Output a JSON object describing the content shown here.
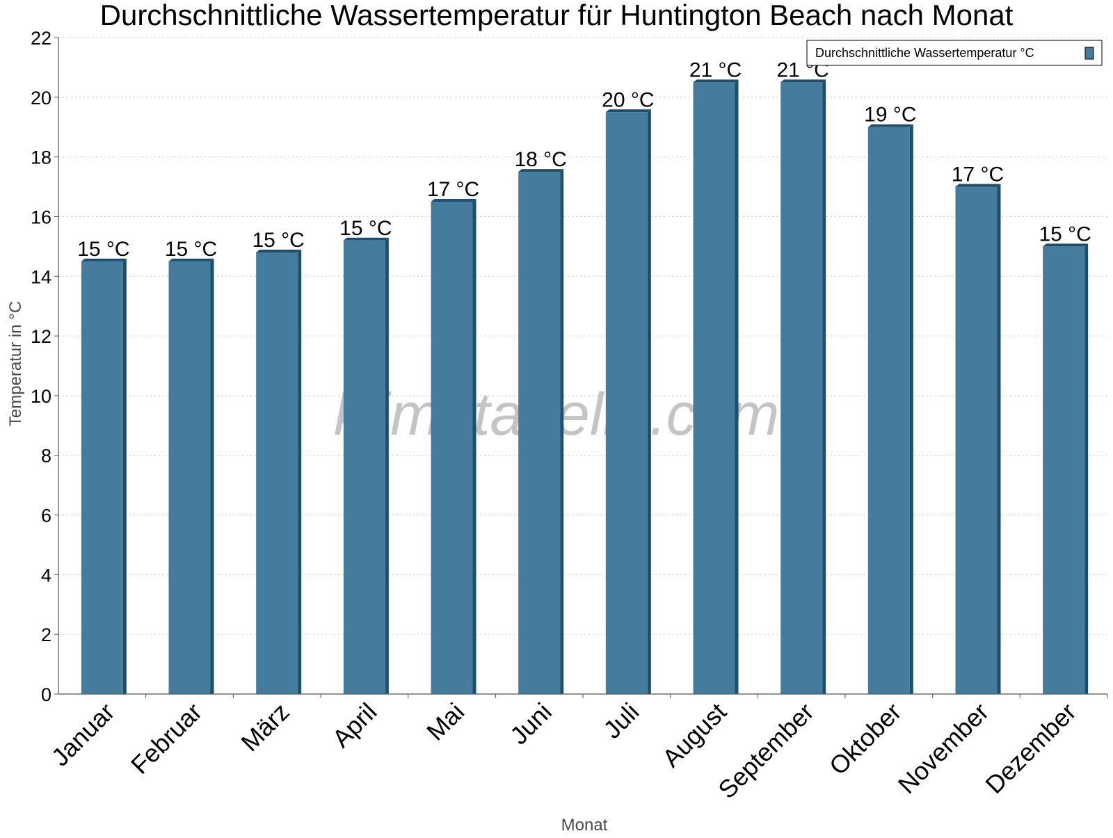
{
  "chart_data": {
    "type": "bar",
    "title": "Durchschnittliche Wassertemperatur für Huntington Beach nach Monat",
    "xlabel": "Monat",
    "ylabel": "Temperatur in °C",
    "ylim": [
      0,
      22
    ],
    "yticks": [
      "0",
      "2",
      "4",
      "6",
      "8",
      "10",
      "12",
      "14",
      "16",
      "18",
      "20",
      "22"
    ],
    "grid": true,
    "legend_position": "top-right",
    "categories": [
      "Januar",
      "Februar",
      "März",
      "April",
      "Mai",
      "Juni",
      "Juli",
      "August",
      "September",
      "Oktober",
      "November",
      "Dezember"
    ],
    "series": [
      {
        "name": "Durchschnittliche Wassertemperatur °C",
        "values": [
          14.5,
          14.5,
          14.8,
          15.2,
          16.5,
          17.5,
          19.5,
          20.5,
          20.5,
          19.0,
          17.0,
          15.0
        ],
        "labels": [
          "15 °C",
          "15 °C",
          "15 °C",
          "15 °C",
          "17 °C",
          "18 °C",
          "20 °C",
          "21 °C",
          "21 °C",
          "19 °C",
          "17 °C",
          "15 °C"
        ],
        "color": "#457b9d",
        "edge_color": "#1d4e6e"
      }
    ],
    "watermark": "klimatabelle.com"
  }
}
